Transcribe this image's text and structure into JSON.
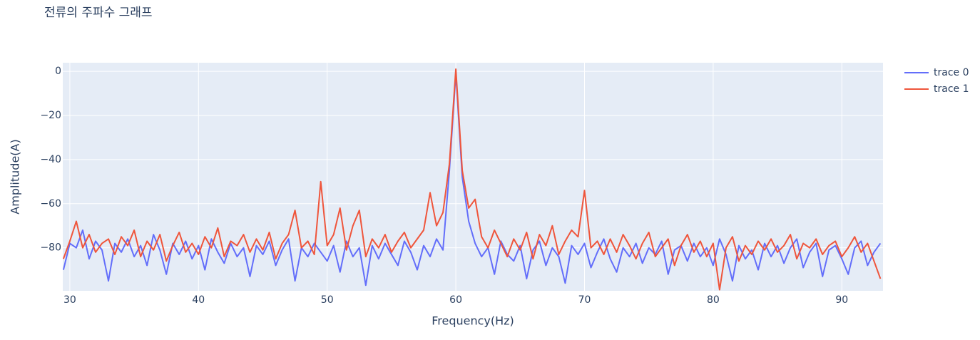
{
  "chart_data": {
    "type": "line",
    "title": "전류의 주파수 그래프",
    "x_label": "Frequency(Hz)",
    "y_label": "Amplitude(A)",
    "x": [
      29.5,
      30,
      30.5,
      31,
      31.5,
      32,
      32.5,
      33,
      33.5,
      34,
      34.5,
      35,
      35.5,
      36,
      36.5,
      37,
      37.5,
      38,
      38.5,
      39,
      39.5,
      40,
      40.5,
      41,
      41.5,
      42,
      42.5,
      43,
      43.5,
      44,
      44.5,
      45,
      45.5,
      46,
      46.5,
      47,
      47.5,
      48,
      48.5,
      49,
      49.5,
      50,
      50.5,
      51,
      51.5,
      52,
      52.5,
      53,
      53.5,
      54,
      54.5,
      55,
      55.5,
      56,
      56.5,
      57,
      57.5,
      58,
      58.5,
      59,
      59.5,
      60,
      60.5,
      61,
      61.5,
      62,
      62.5,
      63,
      63.5,
      64,
      64.5,
      65,
      65.5,
      66,
      66.5,
      67,
      67.5,
      68,
      68.5,
      69,
      69.5,
      70,
      70.5,
      71,
      71.5,
      72,
      72.5,
      73,
      73.5,
      74,
      74.5,
      75,
      75.5,
      76,
      76.5,
      77,
      77.5,
      78,
      78.5,
      79,
      79.5,
      80,
      80.5,
      81,
      81.5,
      82,
      82.5,
      83,
      83.5,
      84,
      84.5,
      85,
      85.5,
      86,
      86.5,
      87,
      87.5,
      88,
      88.5,
      89,
      89.5,
      90,
      90.5,
      91,
      91.5,
      92,
      92.5,
      93
    ],
    "series": [
      {
        "name": "trace 0",
        "color": "#636efa",
        "values": [
          -90,
          -78,
          -80,
          -72,
          -85,
          -77,
          -81,
          -95,
          -78,
          -82,
          -76,
          -84,
          -79,
          -88,
          -74,
          -81,
          -92,
          -78,
          -83,
          -77,
          -85,
          -79,
          -90,
          -76,
          -82,
          -87,
          -78,
          -84,
          -80,
          -93,
          -79,
          -83,
          -77,
          -88,
          -81,
          -76,
          -95,
          -80,
          -84,
          -78,
          -82,
          -86,
          -79,
          -91,
          -77,
          -84,
          -80,
          -97,
          -79,
          -85,
          -78,
          -83,
          -88,
          -77,
          -82,
          -90,
          -79,
          -84,
          -76,
          -81,
          -45,
          -1,
          -48,
          -68,
          -78,
          -84,
          -80,
          -92,
          -77,
          -83,
          -86,
          -79,
          -94,
          -81,
          -77,
          -88,
          -80,
          -84,
          -96,
          -79,
          -83,
          -78,
          -89,
          -82,
          -76,
          -85,
          -91,
          -80,
          -84,
          -78,
          -87,
          -80,
          -83,
          -77,
          -92,
          -81,
          -79,
          -86,
          -78,
          -84,
          -80,
          -88,
          -76,
          -83,
          -95,
          -79,
          -85,
          -81,
          -90,
          -78,
          -84,
          -79,
          -87,
          -80,
          -76,
          -89,
          -82,
          -78,
          -93,
          -81,
          -79,
          -85,
          -92,
          -80,
          -77,
          -88,
          -82,
          -78
        ]
      },
      {
        "name": "trace 1",
        "color": "#EF553B",
        "values": [
          -85,
          -77,
          -68,
          -80,
          -74,
          -82,
          -78,
          -76,
          -83,
          -75,
          -79,
          -72,
          -84,
          -77,
          -81,
          -74,
          -86,
          -79,
          -73,
          -82,
          -78,
          -83,
          -75,
          -80,
          -71,
          -84,
          -77,
          -79,
          -74,
          -82,
          -76,
          -81,
          -73,
          -85,
          -78,
          -74,
          -63,
          -80,
          -77,
          -83,
          -50,
          -79,
          -74,
          -62,
          -81,
          -70,
          -63,
          -84,
          -76,
          -80,
          -74,
          -82,
          -77,
          -73,
          -80,
          -76,
          -72,
          -55,
          -70,
          -64,
          -42,
          1,
          -45,
          -62,
          -58,
          -75,
          -80,
          -72,
          -78,
          -84,
          -76,
          -81,
          -73,
          -85,
          -74,
          -79,
          -70,
          -83,
          -77,
          -72,
          -75,
          -54,
          -80,
          -77,
          -83,
          -76,
          -82,
          -74,
          -79,
          -85,
          -78,
          -73,
          -84,
          -80,
          -76,
          -88,
          -79,
          -74,
          -82,
          -77,
          -84,
          -78,
          -99,
          -80,
          -75,
          -86,
          -79,
          -83,
          -77,
          -81,
          -76,
          -82,
          -79,
          -74,
          -85,
          -78,
          -80,
          -76,
          -83,
          -79,
          -77,
          -84,
          -80,
          -75,
          -82,
          -78,
          -86,
          -94
        ]
      }
    ],
    "xlim": [
      29.45,
      93.2
    ],
    "ylim": [
      -99.5,
      3.9
    ],
    "xticks": [
      30,
      40,
      50,
      60,
      70,
      80,
      90
    ],
    "yticks": [
      0,
      {
        "value": -20,
        "label": "−20"
      },
      {
        "value": -40,
        "label": "−40"
      },
      {
        "value": -60,
        "label": "−60"
      },
      {
        "value": -80,
        "label": "−80"
      }
    ],
    "grid": true
  }
}
